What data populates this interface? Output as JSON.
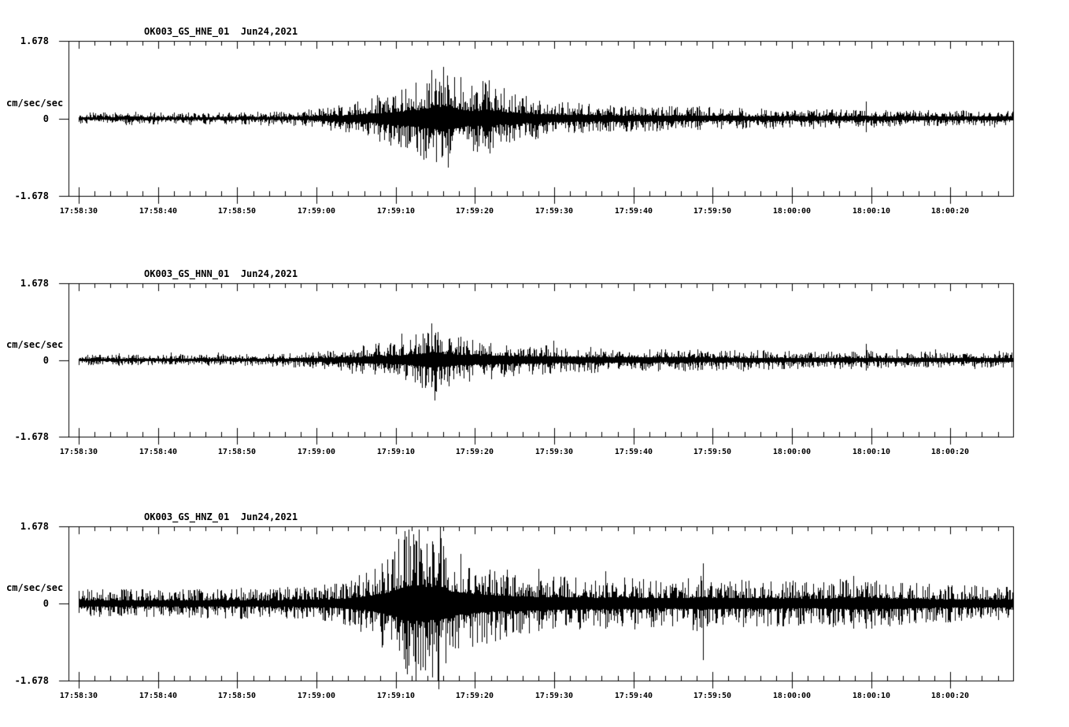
{
  "figure": {
    "background": "#ffffff",
    "ink": "#000000"
  },
  "chart_data": [
    {
      "type": "line",
      "subtype": "seismogram",
      "title": "OK003_GS_HNE_01  Jun24,2021",
      "station_channel": "OK003_GS_HNE_01",
      "date": "Jun24,2021",
      "ylabel": "cm/sec/sec",
      "ylim": [
        -1.678,
        1.678
      ],
      "ytick_labels": [
        "1.678",
        "0",
        "-1.678"
      ],
      "xtick_labels": [
        "17:58:30",
        "17:58:40",
        "17:58:50",
        "17:59:00",
        "17:59:10",
        "17:59:20",
        "17:59:30",
        "17:59:40",
        "17:59:50",
        "18:00:00",
        "18:00:10",
        "18:00:20"
      ],
      "x_major_interval_sec": 10,
      "x_minor_interval_sec": 2,
      "x_range_sec": [
        -1.3,
        118
      ],
      "seed": 101,
      "envelope": [
        [
          0,
          0.11
        ],
        [
          5,
          0.11
        ],
        [
          6.5,
          0.14
        ],
        [
          8,
          0.11
        ],
        [
          14,
          0.11
        ],
        [
          20,
          0.115
        ],
        [
          24,
          0.125
        ],
        [
          27,
          0.13
        ],
        [
          29,
          0.16
        ],
        [
          31,
          0.2
        ],
        [
          33,
          0.25
        ],
        [
          35,
          0.31
        ],
        [
          37,
          0.38
        ],
        [
          39,
          0.5
        ],
        [
          41,
          0.58
        ],
        [
          43,
          0.68
        ],
        [
          44.5,
          0.88
        ],
        [
          46,
          0.95
        ],
        [
          47.5,
          0.82
        ],
        [
          49,
          0.65
        ],
        [
          50.5,
          0.6
        ],
        [
          51.3,
          0.75
        ],
        [
          52.5,
          0.58
        ],
        [
          54,
          0.5
        ],
        [
          56,
          0.42
        ],
        [
          58,
          0.36
        ],
        [
          60,
          0.32
        ],
        [
          63,
          0.28
        ],
        [
          66,
          0.26
        ],
        [
          70,
          0.24
        ],
        [
          75,
          0.22
        ],
        [
          80,
          0.205
        ],
        [
          85,
          0.19
        ],
        [
          90,
          0.18
        ],
        [
          95,
          0.17
        ],
        [
          100,
          0.16
        ],
        [
          105,
          0.15
        ],
        [
          110,
          0.145
        ],
        [
          118,
          0.14
        ]
      ],
      "spikes": [
        [
          44.2,
          0.75,
          0.55
        ],
        [
          45.1,
          0.6,
          0.95
        ],
        [
          45.8,
          0.55,
          0.85
        ],
        [
          46.6,
          0.72,
          0.5
        ],
        [
          51.3,
          0.78,
          0.42
        ],
        [
          99.3,
          0.36,
          0.3
        ]
      ]
    },
    {
      "type": "line",
      "subtype": "seismogram",
      "title": "OK003_GS_HNN_01  Jun24,2021",
      "station_channel": "OK003_GS_HNN_01",
      "date": "Jun24,2021",
      "ylabel": "cm/sec/sec",
      "ylim": [
        -1.678,
        1.678
      ],
      "ytick_labels": [
        "1.678",
        "0",
        "-1.678"
      ],
      "xtick_labels": [
        "17:58:30",
        "17:58:40",
        "17:58:50",
        "17:59:00",
        "17:59:10",
        "17:59:20",
        "17:59:30",
        "17:59:40",
        "17:59:50",
        "18:00:00",
        "18:00:10",
        "18:00:20"
      ],
      "x_major_interval_sec": 10,
      "x_minor_interval_sec": 2,
      "x_range_sec": [
        -1.3,
        118
      ],
      "seed": 202,
      "envelope": [
        [
          0,
          0.1
        ],
        [
          10,
          0.1
        ],
        [
          18,
          0.105
        ],
        [
          24,
          0.115
        ],
        [
          28,
          0.135
        ],
        [
          31,
          0.17
        ],
        [
          34,
          0.23
        ],
        [
          37,
          0.29
        ],
        [
          40,
          0.36
        ],
        [
          42,
          0.43
        ],
        [
          43.8,
          0.55
        ],
        [
          44.7,
          0.68
        ],
        [
          45.8,
          0.52
        ],
        [
          47.5,
          0.44
        ],
        [
          50,
          0.39
        ],
        [
          53,
          0.34
        ],
        [
          56,
          0.3
        ],
        [
          60,
          0.27
        ],
        [
          65,
          0.24
        ],
        [
          70,
          0.22
        ],
        [
          75,
          0.205
        ],
        [
          80,
          0.19
        ],
        [
          85,
          0.18
        ],
        [
          90,
          0.17
        ],
        [
          95,
          0.163
        ],
        [
          100,
          0.157
        ],
        [
          105,
          0.15
        ],
        [
          110,
          0.147
        ],
        [
          118,
          0.143
        ]
      ],
      "spikes": [
        [
          44.5,
          0.8,
          0.6
        ],
        [
          44.9,
          0.55,
          0.88
        ],
        [
          99.3,
          0.36,
          0.22
        ]
      ]
    },
    {
      "type": "line",
      "subtype": "seismogram",
      "title": "OK003_GS_HNZ_01  Jun24,2021",
      "station_channel": "OK003_GS_HNZ_01",
      "date": "Jun24,2021",
      "ylabel": "cm/sec/sec",
      "ylim": [
        -1.678,
        1.678
      ],
      "ytick_labels": [
        "1.678",
        "0",
        "-1.678"
      ],
      "xtick_labels": [
        "17:58:30",
        "17:58:40",
        "17:58:50",
        "17:59:00",
        "17:59:10",
        "17:59:20",
        "17:59:30",
        "17:59:40",
        "17:59:50",
        "18:00:00",
        "18:00:10",
        "18:00:20"
      ],
      "x_major_interval_sec": 10,
      "x_minor_interval_sec": 2,
      "x_range_sec": [
        -1.3,
        118
      ],
      "seed": 303,
      "envelope": [
        [
          0,
          0.26
        ],
        [
          8,
          0.26
        ],
        [
          15,
          0.265
        ],
        [
          22,
          0.275
        ],
        [
          26,
          0.29
        ],
        [
          29,
          0.315
        ],
        [
          32,
          0.36
        ],
        [
          34,
          0.43
        ],
        [
          36,
          0.55
        ],
        [
          38,
          0.78
        ],
        [
          39.5,
          1.0
        ],
        [
          41,
          1.38
        ],
        [
          42.5,
          1.48
        ],
        [
          44,
          1.38
        ],
        [
          45.5,
          1.42
        ],
        [
          47,
          1.0
        ],
        [
          48.5,
          0.9
        ],
        [
          50,
          0.8
        ],
        [
          52,
          0.7
        ],
        [
          54,
          0.63
        ],
        [
          57,
          0.56
        ],
        [
          60,
          0.52
        ],
        [
          63,
          0.5
        ],
        [
          66,
          0.48
        ],
        [
          70,
          0.46
        ],
        [
          73,
          0.44
        ],
        [
          76,
          0.43
        ],
        [
          78.5,
          0.52
        ],
        [
          79.5,
          0.5
        ],
        [
          81,
          0.45
        ],
        [
          83,
          0.42
        ],
        [
          86,
          0.44
        ],
        [
          89,
          0.42
        ],
        [
          92,
          0.4
        ],
        [
          95,
          0.42
        ],
        [
          97.5,
          0.47
        ],
        [
          99,
          0.5
        ],
        [
          101,
          0.44
        ],
        [
          104,
          0.4
        ],
        [
          107,
          0.36
        ],
        [
          110,
          0.34
        ],
        [
          113,
          0.33
        ],
        [
          118,
          0.33
        ]
      ],
      "spikes": [
        [
          41.3,
          1.45,
          1.0
        ],
        [
          42.2,
          1.5,
          1.15
        ],
        [
          43.1,
          1.2,
          1.45
        ],
        [
          44.6,
          1.35,
          1.2
        ],
        [
          45.4,
          1.1,
          1.87
        ],
        [
          46.3,
          1.0,
          1.3
        ],
        [
          58,
          0.75,
          0.6
        ],
        [
          66.5,
          0.7,
          0.55
        ],
        [
          78.8,
          0.88,
          1.22
        ],
        [
          97.8,
          0.6,
          0.55
        ]
      ]
    }
  ]
}
